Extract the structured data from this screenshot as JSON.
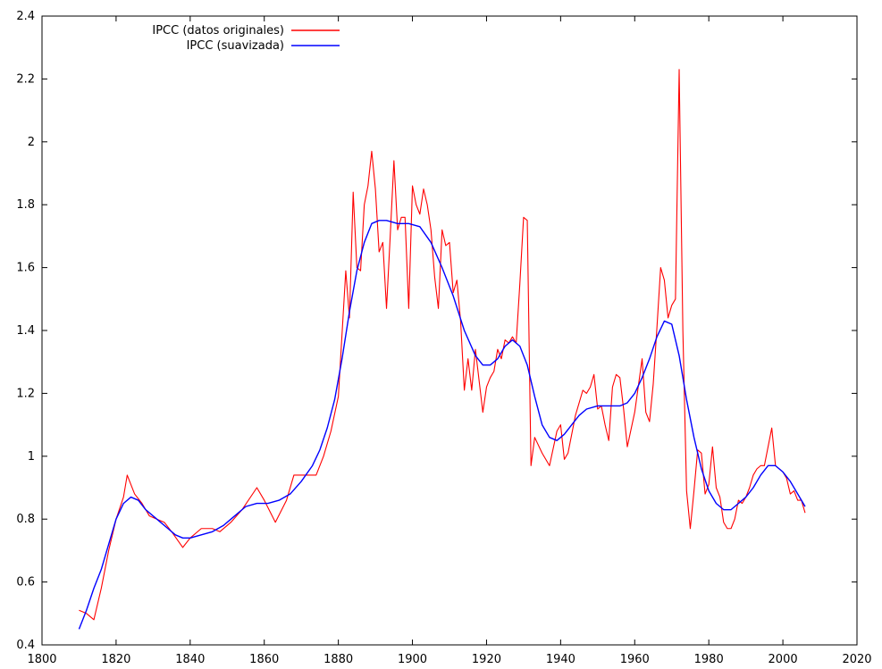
{
  "chart_data": {
    "type": "line",
    "title": "",
    "xlabel": "",
    "ylabel": "",
    "xlim": [
      1800,
      2020
    ],
    "ylim": [
      0.4,
      2.4
    ],
    "xticks": [
      "1800",
      "1820",
      "1840",
      "1860",
      "1880",
      "1900",
      "1920",
      "1940",
      "1960",
      "1980",
      "2000",
      "2020"
    ],
    "yticks": [
      "0.4",
      "0.6",
      "0.8",
      "1",
      "1.2",
      "1.4",
      "1.6",
      "1.8",
      "2",
      "2.2",
      "2.4"
    ],
    "grid": false,
    "legend_position": "top-left",
    "series": [
      {
        "name": "IPCC (datos originales)",
        "color": "#ff0000",
        "points": [
          [
            1810,
            0.51
          ],
          [
            1812,
            0.5
          ],
          [
            1814,
            0.48
          ],
          [
            1816,
            0.58
          ],
          [
            1818,
            0.7
          ],
          [
            1820,
            0.8
          ],
          [
            1822,
            0.87
          ],
          [
            1823,
            0.94
          ],
          [
            1825,
            0.88
          ],
          [
            1827,
            0.85
          ],
          [
            1829,
            0.81
          ],
          [
            1831,
            0.8
          ],
          [
            1833,
            0.79
          ],
          [
            1835,
            0.76
          ],
          [
            1838,
            0.71
          ],
          [
            1840,
            0.74
          ],
          [
            1843,
            0.77
          ],
          [
            1846,
            0.77
          ],
          [
            1848,
            0.76
          ],
          [
            1851,
            0.79
          ],
          [
            1854,
            0.83
          ],
          [
            1858,
            0.9
          ],
          [
            1860,
            0.86
          ],
          [
            1863,
            0.79
          ],
          [
            1866,
            0.86
          ],
          [
            1868,
            0.94
          ],
          [
            1872,
            0.94
          ],
          [
            1874,
            0.94
          ],
          [
            1876,
            1.0
          ],
          [
            1878,
            1.08
          ],
          [
            1880,
            1.19
          ],
          [
            1882,
            1.59
          ],
          [
            1883,
            1.44
          ],
          [
            1884,
            1.84
          ],
          [
            1885,
            1.6
          ],
          [
            1886,
            1.59
          ],
          [
            1887,
            1.8
          ],
          [
            1888,
            1.86
          ],
          [
            1889,
            1.97
          ],
          [
            1890,
            1.85
          ],
          [
            1891,
            1.65
          ],
          [
            1892,
            1.68
          ],
          [
            1893,
            1.47
          ],
          [
            1894,
            1.7
          ],
          [
            1895,
            1.94
          ],
          [
            1896,
            1.72
          ],
          [
            1897,
            1.76
          ],
          [
            1898,
            1.76
          ],
          [
            1899,
            1.47
          ],
          [
            1900,
            1.86
          ],
          [
            1901,
            1.8
          ],
          [
            1902,
            1.77
          ],
          [
            1903,
            1.85
          ],
          [
            1904,
            1.8
          ],
          [
            1905,
            1.72
          ],
          [
            1906,
            1.57
          ],
          [
            1907,
            1.47
          ],
          [
            1908,
            1.72
          ],
          [
            1909,
            1.67
          ],
          [
            1910,
            1.68
          ],
          [
            1911,
            1.52
          ],
          [
            1912,
            1.56
          ],
          [
            1913,
            1.43
          ],
          [
            1914,
            1.21
          ],
          [
            1915,
            1.31
          ],
          [
            1916,
            1.21
          ],
          [
            1917,
            1.34
          ],
          [
            1918,
            1.24
          ],
          [
            1919,
            1.14
          ],
          [
            1920,
            1.22
          ],
          [
            1921,
            1.25
          ],
          [
            1922,
            1.27
          ],
          [
            1923,
            1.34
          ],
          [
            1924,
            1.31
          ],
          [
            1925,
            1.37
          ],
          [
            1926,
            1.36
          ],
          [
            1927,
            1.38
          ],
          [
            1928,
            1.36
          ],
          [
            1929,
            1.55
          ],
          [
            1930,
            1.76
          ],
          [
            1931,
            1.75
          ],
          [
            1932,
            0.97
          ],
          [
            1933,
            1.06
          ],
          [
            1935,
            1.01
          ],
          [
            1937,
            0.97
          ],
          [
            1939,
            1.08
          ],
          [
            1940,
            1.1
          ],
          [
            1941,
            0.99
          ],
          [
            1942,
            1.01
          ],
          [
            1944,
            1.13
          ],
          [
            1946,
            1.21
          ],
          [
            1947,
            1.2
          ],
          [
            1948,
            1.22
          ],
          [
            1949,
            1.26
          ],
          [
            1950,
            1.15
          ],
          [
            1951,
            1.16
          ],
          [
            1952,
            1.1
          ],
          [
            1953,
            1.05
          ],
          [
            1954,
            1.22
          ],
          [
            1955,
            1.26
          ],
          [
            1956,
            1.25
          ],
          [
            1957,
            1.15
          ],
          [
            1958,
            1.03
          ],
          [
            1960,
            1.14
          ],
          [
            1962,
            1.31
          ],
          [
            1963,
            1.14
          ],
          [
            1964,
            1.11
          ],
          [
            1965,
            1.23
          ],
          [
            1966,
            1.41
          ],
          [
            1967,
            1.6
          ],
          [
            1968,
            1.56
          ],
          [
            1969,
            1.44
          ],
          [
            1970,
            1.48
          ],
          [
            1971,
            1.5
          ],
          [
            1972,
            2.23
          ],
          [
            1973,
            1.4
          ],
          [
            1974,
            0.89
          ],
          [
            1975,
            0.77
          ],
          [
            1976,
            0.89
          ],
          [
            1977,
            1.02
          ],
          [
            1978,
            1.01
          ],
          [
            1979,
            0.88
          ],
          [
            1980,
            0.91
          ],
          [
            1981,
            1.03
          ],
          [
            1982,
            0.9
          ],
          [
            1983,
            0.87
          ],
          [
            1984,
            0.79
          ],
          [
            1985,
            0.77
          ],
          [
            1986,
            0.77
          ],
          [
            1987,
            0.8
          ],
          [
            1988,
            0.86
          ],
          [
            1989,
            0.85
          ],
          [
            1990,
            0.87
          ],
          [
            1991,
            0.9
          ],
          [
            1992,
            0.94
          ],
          [
            1993,
            0.96
          ],
          [
            1994,
            0.97
          ],
          [
            1995,
            0.97
          ],
          [
            1996,
            1.03
          ],
          [
            1997,
            1.09
          ],
          [
            1998,
            0.97
          ],
          [
            1999,
            0.96
          ],
          [
            2000,
            0.95
          ],
          [
            2001,
            0.93
          ],
          [
            2002,
            0.88
          ],
          [
            2003,
            0.89
          ],
          [
            2004,
            0.86
          ],
          [
            2005,
            0.86
          ],
          [
            2006,
            0.82
          ]
        ]
      },
      {
        "name": "IPCC (suavizada)",
        "color": "#0000ff",
        "points": [
          [
            1810,
            0.45
          ],
          [
            1812,
            0.51
          ],
          [
            1814,
            0.58
          ],
          [
            1816,
            0.64
          ],
          [
            1818,
            0.72
          ],
          [
            1820,
            0.8
          ],
          [
            1822,
            0.85
          ],
          [
            1824,
            0.87
          ],
          [
            1826,
            0.86
          ],
          [
            1828,
            0.83
          ],
          [
            1830,
            0.81
          ],
          [
            1832,
            0.79
          ],
          [
            1834,
            0.77
          ],
          [
            1836,
            0.75
          ],
          [
            1838,
            0.74
          ],
          [
            1840,
            0.74
          ],
          [
            1843,
            0.75
          ],
          [
            1846,
            0.76
          ],
          [
            1849,
            0.78
          ],
          [
            1852,
            0.81
          ],
          [
            1855,
            0.84
          ],
          [
            1858,
            0.85
          ],
          [
            1861,
            0.85
          ],
          [
            1864,
            0.86
          ],
          [
            1867,
            0.88
          ],
          [
            1870,
            0.92
          ],
          [
            1873,
            0.97
          ],
          [
            1875,
            1.02
          ],
          [
            1877,
            1.09
          ],
          [
            1879,
            1.18
          ],
          [
            1881,
            1.31
          ],
          [
            1883,
            1.46
          ],
          [
            1885,
            1.59
          ],
          [
            1887,
            1.68
          ],
          [
            1889,
            1.74
          ],
          [
            1891,
            1.75
          ],
          [
            1893,
            1.75
          ],
          [
            1896,
            1.74
          ],
          [
            1899,
            1.74
          ],
          [
            1902,
            1.73
          ],
          [
            1905,
            1.68
          ],
          [
            1908,
            1.6
          ],
          [
            1911,
            1.51
          ],
          [
            1914,
            1.4
          ],
          [
            1917,
            1.32
          ],
          [
            1919,
            1.29
          ],
          [
            1921,
            1.29
          ],
          [
            1923,
            1.31
          ],
          [
            1925,
            1.35
          ],
          [
            1927,
            1.37
          ],
          [
            1929,
            1.35
          ],
          [
            1931,
            1.29
          ],
          [
            1933,
            1.19
          ],
          [
            1935,
            1.1
          ],
          [
            1937,
            1.06
          ],
          [
            1939,
            1.05
          ],
          [
            1941,
            1.07
          ],
          [
            1943,
            1.1
          ],
          [
            1945,
            1.13
          ],
          [
            1947,
            1.15
          ],
          [
            1950,
            1.16
          ],
          [
            1953,
            1.16
          ],
          [
            1956,
            1.16
          ],
          [
            1958,
            1.17
          ],
          [
            1960,
            1.2
          ],
          [
            1962,
            1.25
          ],
          [
            1964,
            1.31
          ],
          [
            1966,
            1.38
          ],
          [
            1968,
            1.43
          ],
          [
            1970,
            1.42
          ],
          [
            1972,
            1.32
          ],
          [
            1974,
            1.18
          ],
          [
            1976,
            1.06
          ],
          [
            1978,
            0.96
          ],
          [
            1980,
            0.89
          ],
          [
            1982,
            0.85
          ],
          [
            1984,
            0.83
          ],
          [
            1986,
            0.83
          ],
          [
            1988,
            0.85
          ],
          [
            1990,
            0.87
          ],
          [
            1992,
            0.9
          ],
          [
            1994,
            0.94
          ],
          [
            1996,
            0.97
          ],
          [
            1998,
            0.97
          ],
          [
            2000,
            0.95
          ],
          [
            2002,
            0.92
          ],
          [
            2004,
            0.88
          ],
          [
            2006,
            0.84
          ]
        ]
      }
    ]
  }
}
